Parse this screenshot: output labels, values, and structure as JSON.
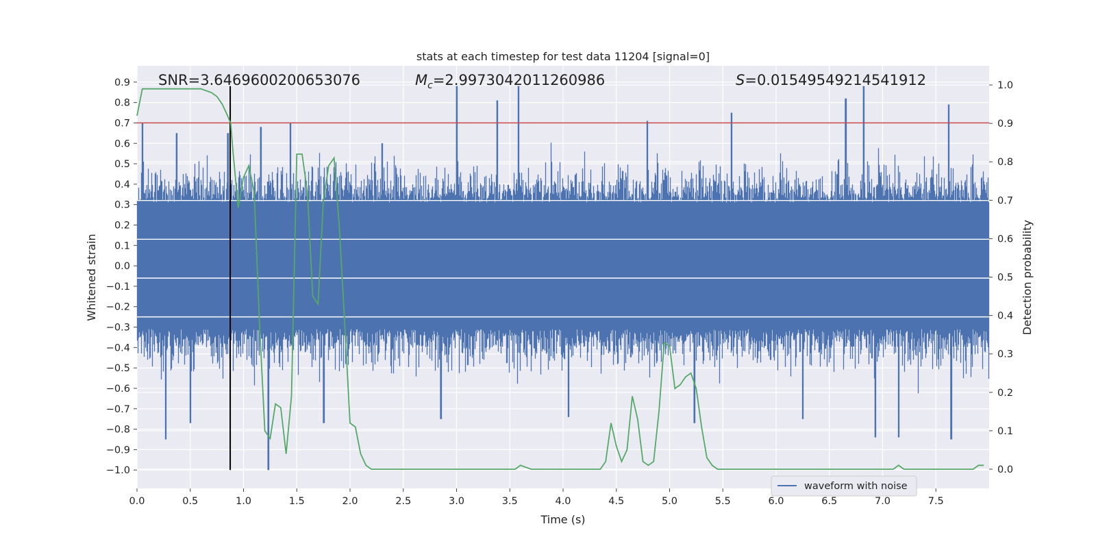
{
  "chart_data": {
    "type": "line",
    "title": "stats at each timestep for test data 11204 [signal=0]",
    "xlabel": "Time (s)",
    "ylabel_left": "Whitened strain",
    "ylabel_right": "Detection probability",
    "xlim": [
      0.0,
      8.0
    ],
    "ylim_left": [
      -1.09,
      0.98
    ],
    "ylim_right": [
      -0.05,
      1.05
    ],
    "x_ticks": [
      "0.0",
      "0.5",
      "1.0",
      "1.5",
      "2.0",
      "2.5",
      "3.0",
      "3.5",
      "4.0",
      "4.5",
      "5.0",
      "5.5",
      "6.0",
      "6.5",
      "7.0",
      "7.5"
    ],
    "x_tick_values": [
      0.0,
      0.5,
      1.0,
      1.5,
      2.0,
      2.5,
      3.0,
      3.5,
      4.0,
      4.5,
      5.0,
      5.5,
      6.0,
      6.5,
      7.0,
      7.5
    ],
    "y_left_ticks": [
      "0.9",
      "0.8",
      "0.7",
      "0.6",
      "0.5",
      "0.4",
      "0.3",
      "0.2",
      "0.1",
      "0.0",
      "−0.1",
      "−0.2",
      "−0.3",
      "−0.4",
      "−0.5",
      "−0.6",
      "−0.7",
      "−0.8",
      "−0.9",
      "−1.0"
    ],
    "y_left_tick_values": [
      0.9,
      0.8,
      0.7,
      0.6,
      0.5,
      0.4,
      0.3,
      0.2,
      0.1,
      0.0,
      -0.1,
      -0.2,
      -0.3,
      -0.4,
      -0.5,
      -0.6,
      -0.7,
      -0.8,
      -0.9,
      -1.0
    ],
    "y_right_ticks": [
      "1.0",
      "0.9",
      "0.8",
      "0.7",
      "0.6",
      "0.5",
      "0.4",
      "0.3",
      "0.2",
      "0.1",
      "0.0"
    ],
    "y_right_tick_values": [
      1.0,
      0.9,
      0.8,
      0.7,
      0.6,
      0.5,
      0.4,
      0.3,
      0.2,
      0.1,
      0.0
    ],
    "annotations": {
      "snr": "SNR=3.6469600200653076",
      "mc_symbol": "M",
      "mc_sub": "c",
      "mc_value": "=2.9973042011260986",
      "s_symbol": "S",
      "s_value": "=0.015495492145419​12"
    },
    "threshold": {
      "value": 0.7,
      "axis": "left",
      "color": "#c44e52"
    },
    "marker_line": {
      "x": 0.875,
      "y_from": -1.0,
      "y_to": 0.88,
      "color": "#000000"
    },
    "legend": {
      "label": "waveform with noise",
      "placement": "lower-right"
    },
    "waveform": {
      "name": "waveform with noise",
      "color": "#4c72b0",
      "samples": 16384,
      "x_range": [
        0.0,
        8.0
      ],
      "core_band": [
        -0.3,
        0.3
      ],
      "typical_min": -0.5,
      "typical_max": 0.5,
      "spikes": [
        {
          "x": 0.05,
          "y": 0.7
        },
        {
          "x": 0.27,
          "y": -0.85
        },
        {
          "x": 0.37,
          "y": 0.65
        },
        {
          "x": 0.5,
          "y": -0.77
        },
        {
          "x": 0.85,
          "y": 0.65
        },
        {
          "x": 1.16,
          "y": 0.68
        },
        {
          "x": 1.23,
          "y": -1.0
        },
        {
          "x": 1.44,
          "y": 0.7
        },
        {
          "x": 1.75,
          "y": -0.77
        },
        {
          "x": 2.3,
          "y": 0.6
        },
        {
          "x": 2.85,
          "y": -0.75
        },
        {
          "x": 3.0,
          "y": 0.88
        },
        {
          "x": 3.38,
          "y": 0.81
        },
        {
          "x": 3.58,
          "y": 0.88
        },
        {
          "x": 4.05,
          "y": -0.74
        },
        {
          "x": 4.79,
          "y": 0.71
        },
        {
          "x": 5.23,
          "y": -0.77
        },
        {
          "x": 5.58,
          "y": 0.75
        },
        {
          "x": 6.25,
          "y": -0.75
        },
        {
          "x": 6.65,
          "y": 0.82
        },
        {
          "x": 6.82,
          "y": 0.88
        },
        {
          "x": 6.93,
          "y": -0.84
        },
        {
          "x": 7.15,
          "y": -0.84
        },
        {
          "x": 7.62,
          "y": 0.79
        },
        {
          "x": 7.64,
          "y": -0.85
        }
      ]
    },
    "probability": {
      "name": "detection probability",
      "color": "#55a868",
      "axis": "right",
      "x": [
        0.0,
        0.05,
        0.1,
        0.2,
        0.3,
        0.4,
        0.5,
        0.6,
        0.7,
        0.75,
        0.8,
        0.85,
        0.88,
        0.9,
        0.95,
        1.0,
        1.05,
        1.1,
        1.15,
        1.2,
        1.25,
        1.3,
        1.35,
        1.4,
        1.45,
        1.5,
        1.55,
        1.6,
        1.65,
        1.7,
        1.75,
        1.8,
        1.85,
        1.9,
        1.95,
        2.0,
        2.05,
        2.1,
        2.15,
        2.2,
        2.25,
        2.4,
        2.6,
        2.8,
        3.0,
        3.2,
        3.4,
        3.55,
        3.6,
        3.7,
        3.8,
        4.0,
        4.2,
        4.35,
        4.4,
        4.45,
        4.5,
        4.55,
        4.6,
        4.65,
        4.7,
        4.75,
        4.8,
        4.85,
        4.9,
        4.95,
        5.0,
        5.05,
        5.1,
        5.15,
        5.2,
        5.25,
        5.3,
        5.35,
        5.4,
        5.45,
        5.5,
        5.55,
        5.6,
        5.65,
        5.7,
        5.8,
        6.0,
        6.2,
        6.5,
        6.8,
        7.0,
        7.1,
        7.15,
        7.2,
        7.25,
        7.3,
        7.35,
        7.4,
        7.5,
        7.55,
        7.6,
        7.7,
        7.8,
        7.85,
        7.9,
        7.95
      ],
      "y": [
        0.92,
        0.99,
        0.99,
        0.99,
        0.99,
        0.99,
        0.99,
        0.99,
        0.98,
        0.97,
        0.95,
        0.92,
        0.9,
        0.83,
        0.68,
        0.76,
        0.79,
        0.72,
        0.38,
        0.1,
        0.08,
        0.17,
        0.16,
        0.04,
        0.19,
        0.82,
        0.82,
        0.72,
        0.45,
        0.43,
        0.7,
        0.79,
        0.81,
        0.63,
        0.38,
        0.12,
        0.11,
        0.04,
        0.01,
        0.0,
        0.0,
        0.0,
        0.0,
        0.0,
        0.0,
        0.0,
        0.0,
        0.0,
        0.01,
        0.0,
        0.0,
        0.0,
        0.0,
        0.0,
        0.02,
        0.12,
        0.06,
        0.02,
        0.05,
        0.19,
        0.13,
        0.02,
        0.01,
        0.02,
        0.15,
        0.33,
        0.32,
        0.21,
        0.22,
        0.24,
        0.25,
        0.21,
        0.11,
        0.03,
        0.01,
        0.0,
        0.0,
        0.0,
        0.0,
        0.0,
        0.0,
        0.0,
        0.0,
        0.0,
        0.0,
        0.0,
        0.0,
        0.0,
        0.01,
        0.0,
        0.0,
        0.0,
        0.0,
        0.0,
        0.0,
        0.0,
        0.0,
        0.0,
        0.0,
        0.0,
        0.01,
        0.01
      ]
    }
  }
}
